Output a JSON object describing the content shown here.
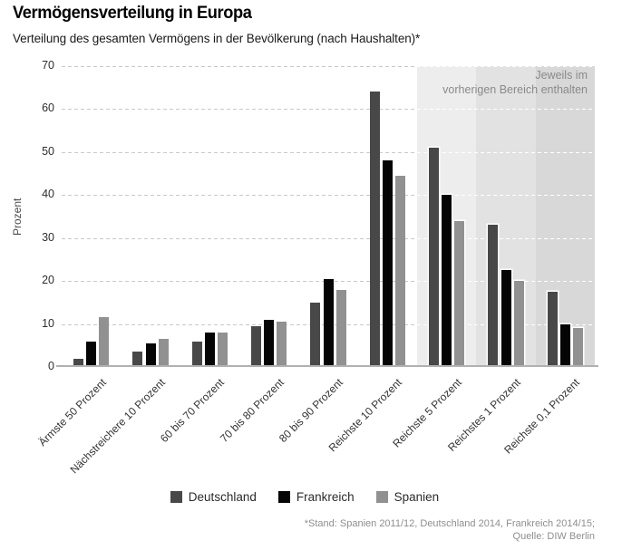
{
  "header": {
    "title": "Vermögensverteilung in Europa",
    "subtitle": "Verteilung des gesamten Vermögens in der Bevölkerung (nach Haushalten)*"
  },
  "chart_data": {
    "type": "bar",
    "title": "Vermögensverteilung in Europa",
    "subtitle": "Verteilung des gesamten Vermögens in der Bevölkerung (nach Haushalten)*",
    "categories": [
      "Ärmste 50 Prozent",
      "Nächstreichere 10 Prozent",
      "60 bis 70 Prozent",
      "70 bis 80 Prozent",
      "80 bis 90 Prozent",
      "Reichste 10 Prozent",
      "Reichste 5 Prozent",
      "Reichstes 1 Prozent",
      "Reichste 0,1 Prozent"
    ],
    "series": [
      {
        "name": "Deutschland",
        "color": "#484848",
        "values": [
          2,
          3.5,
          6,
          9.5,
          15,
          64,
          51,
          33,
          17.5
        ]
      },
      {
        "name": "Frankreich",
        "color": "#050505",
        "values": [
          6,
          5.5,
          8,
          11,
          20.5,
          48,
          40,
          22.5,
          10
        ]
      },
      {
        "name": "Spanien",
        "color": "#919191",
        "values": [
          11.5,
          6.5,
          8,
          10.5,
          18,
          44.5,
          34,
          20,
          9
        ]
      }
    ],
    "xlabel": "",
    "ylabel": "Prozent",
    "ylim": [
      0,
      70
    ],
    "yticks": [
      0,
      10,
      20,
      30,
      40,
      50,
      60,
      70
    ],
    "grid": "horizontal-dashed",
    "legend_position": "bottom",
    "highlight_regions": {
      "note": "Jeweils im vorherigen Bereich enthalten",
      "start_category_index": 6,
      "colors": [
        "#ededed",
        "#e2e2e2",
        "#d8d8d8"
      ]
    }
  },
  "annotation": {
    "line1": "Jeweils im",
    "line2": "vorherigen Bereich enthalten"
  },
  "footer": {
    "line1": "*Stand: Spanien 2011/12, Deutschland 2014, Frankreich 2014/15;",
    "line2": "Quelle: DIW Berlin"
  },
  "style": {
    "gridline_color": "#c9c9c9",
    "gridline_color_on_region": "#ffffff",
    "axis_line_color": "#b1b1b1"
  }
}
